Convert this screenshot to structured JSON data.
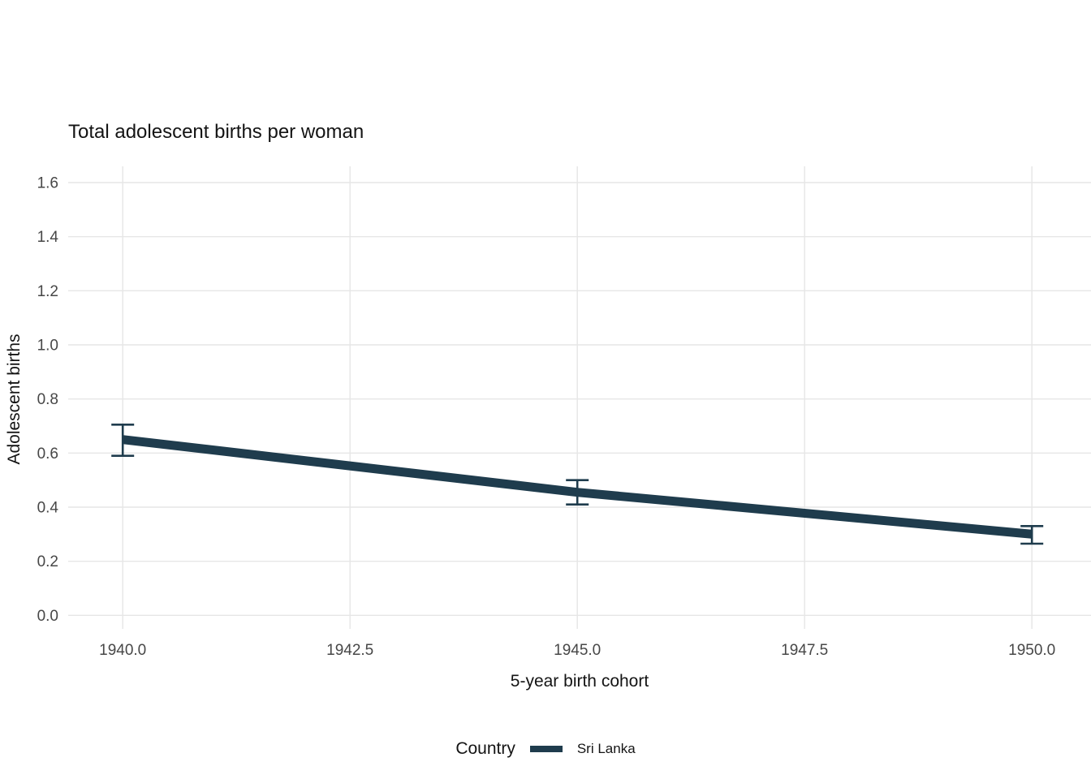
{
  "chart_data": {
    "type": "line",
    "title": "Total adolescent births per woman",
    "xlabel": "5-year birth cohort",
    "ylabel": "Adolescent births",
    "x": [
      1940,
      1945,
      1950
    ],
    "series": [
      {
        "name": "Sri Lanka",
        "color": "#1f3c4d",
        "values": [
          0.65,
          0.455,
          0.3
        ],
        "ci_lower": [
          0.59,
          0.41,
          0.265
        ],
        "ci_upper": [
          0.705,
          0.5,
          0.33
        ]
      }
    ],
    "xticks": [
      1940.0,
      1942.5,
      1945.0,
      1947.5,
      1950.0
    ],
    "xtick_labels": [
      "1940.0",
      "1942.5",
      "1945.0",
      "1947.5",
      "1950.0"
    ],
    "yticks": [
      0.0,
      0.2,
      0.4,
      0.6,
      0.8,
      1.0,
      1.2,
      1.4,
      1.6
    ],
    "ytick_labels": [
      "0.0",
      "0.2",
      "0.4",
      "0.6",
      "0.8",
      "1.0",
      "1.2",
      "1.4",
      "1.6"
    ],
    "xlim": [
      1939.4,
      1950.65
    ],
    "ylim": [
      -0.05,
      1.66
    ],
    "grid": true,
    "legend": {
      "title": "Country",
      "position": "bottom",
      "entries": [
        {
          "label": "Sri Lanka",
          "color": "#1f3c4d"
        }
      ]
    }
  },
  "colors": {
    "background": "#ffffff",
    "grid": "#e6e6e6",
    "tick_text": "#474747",
    "axis_text": "#141414",
    "line": "#1f3c4d"
  }
}
